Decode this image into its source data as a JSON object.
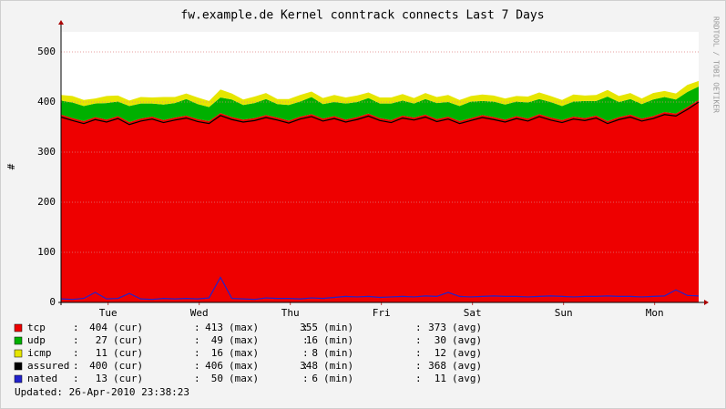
{
  "chart_data": {
    "type": "area",
    "title": "fw.example.de Kernel conntrack connects Last 7 Days",
    "watermark": "RRDTOOL / TOBI OETIKER",
    "y_label": "#",
    "ylim": [
      0,
      540
    ],
    "yticks": [
      0,
      100,
      200,
      300,
      400,
      500
    ],
    "xlim": [
      0,
      168
    ],
    "xticks": [
      {
        "value": 12.4,
        "label": "Tue"
      },
      {
        "value": 36.4,
        "label": "Wed"
      },
      {
        "value": 60.4,
        "label": "Thu"
      },
      {
        "value": 84.4,
        "label": "Fri"
      },
      {
        "value": 108.4,
        "label": "Sat"
      },
      {
        "value": 132.4,
        "label": "Sun"
      },
      {
        "value": 156.4,
        "label": "Mon"
      }
    ],
    "grid": true,
    "x": [
      0,
      3,
      6,
      9,
      12,
      15,
      18,
      21,
      24,
      27,
      30,
      33,
      36,
      39,
      42,
      45,
      48,
      51,
      54,
      57,
      60,
      63,
      66,
      69,
      72,
      75,
      78,
      81,
      84,
      87,
      90,
      93,
      96,
      99,
      102,
      105,
      108,
      111,
      114,
      117,
      120,
      123,
      126,
      129,
      132,
      135,
      138,
      141,
      144,
      147,
      150,
      153,
      156,
      159,
      162,
      165,
      168
    ],
    "series": [
      {
        "name": "tcp",
        "color": "#ee0000",
        "style": "stack",
        "values": [
          375,
          368,
          362,
          370,
          365,
          372,
          360,
          367,
          371,
          364,
          369,
          373,
          366,
          362,
          378,
          370,
          365,
          368,
          374,
          369,
          363,
          371,
          376,
          367,
          372,
          365,
          370,
          377,
          368,
          364,
          373,
          369,
          375,
          366,
          371,
          362,
          368,
          374,
          370,
          365,
          372,
          367,
          376,
          369,
          364,
          371,
          368,
          373,
          362,
          370,
          375,
          367,
          372,
          380,
          377,
          390,
          404
        ],
        "stats": [
          404,
          413,
          355,
          373
        ]
      },
      {
        "name": "udp",
        "color": "#00b000",
        "style": "stack",
        "values": [
          28,
          31,
          30,
          27,
          33,
          29,
          32,
          30,
          26,
          31,
          29,
          33,
          30,
          28,
          31,
          35,
          29,
          30,
          32,
          27,
          31,
          30,
          34,
          29,
          28,
          32,
          30,
          31,
          29,
          33,
          30,
          28,
          31,
          32,
          29,
          30,
          33,
          28,
          31,
          30,
          29,
          32,
          30,
          31,
          28,
          30,
          34,
          29,
          49,
          30,
          31,
          29,
          33,
          30,
          28,
          30,
          27
        ],
        "stats": [
          27,
          49,
          16,
          30
        ]
      },
      {
        "name": "icmp",
        "color": "#e6e600",
        "style": "stack",
        "values": [
          11,
          13,
          12,
          10,
          14,
          12,
          11,
          13,
          12,
          15,
          12,
          11,
          13,
          12,
          16,
          12,
          11,
          13,
          12,
          10,
          12,
          13,
          11,
          12,
          14,
          12,
          13,
          11,
          12,
          12,
          13,
          11,
          12,
          12,
          14,
          12,
          11,
          13,
          12,
          12,
          11,
          12,
          13,
          12,
          12,
          14,
          11,
          12,
          13,
          12,
          12,
          11,
          13,
          12,
          12,
          14,
          11
        ],
        "stats": [
          11,
          16,
          8,
          12
        ]
      },
      {
        "name": "assured",
        "color": "#000000",
        "style": "line",
        "values": [
          370,
          363,
          357,
          365,
          360,
          367,
          355,
          362,
          366,
          359,
          364,
          368,
          361,
          357,
          373,
          365,
          360,
          363,
          369,
          364,
          358,
          366,
          371,
          362,
          367,
          360,
          365,
          372,
          363,
          359,
          368,
          364,
          370,
          361,
          366,
          357,
          363,
          369,
          365,
          360,
          367,
          362,
          371,
          364,
          359,
          366,
          363,
          368,
          357,
          365,
          370,
          362,
          367,
          375,
          372,
          385,
          400
        ],
        "stats": [
          400,
          406,
          348,
          368
        ]
      },
      {
        "name": "nated",
        "color": "#2222cc",
        "style": "line",
        "values": [
          7,
          6,
          8,
          20,
          7,
          8,
          18,
          7,
          6,
          8,
          7,
          8,
          7,
          9,
          50,
          8,
          7,
          6,
          9,
          8,
          8,
          7,
          9,
          8,
          10,
          12,
          11,
          12,
          10,
          11,
          12,
          11,
          13,
          12,
          20,
          12,
          11,
          12,
          13,
          12,
          12,
          11,
          12,
          13,
          12,
          11,
          12,
          12,
          13,
          12,
          12,
          11,
          12,
          13,
          25,
          14,
          13
        ],
        "stats": [
          13,
          50,
          6,
          11
        ]
      }
    ],
    "separator": ":",
    "stat_labels": [
      "(cur)",
      "(max)",
      "(min)",
      "(avg)"
    ],
    "updated": "Updated: 26-Apr-2010 23:38:23"
  }
}
